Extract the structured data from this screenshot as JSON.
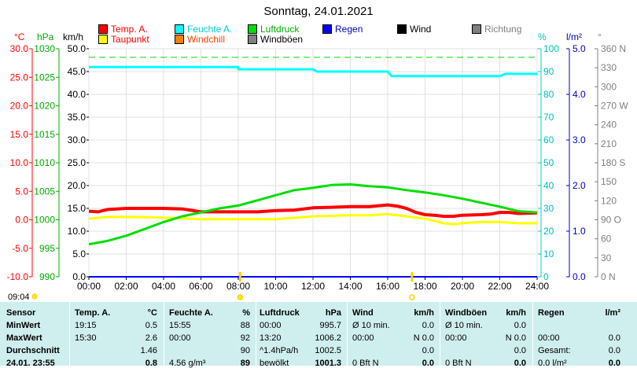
{
  "title": "Sonntag, 24.01.2021",
  "legend": [
    {
      "label": "Temp. A.",
      "color": "#ff0000",
      "col": 0,
      "row": 0
    },
    {
      "label": "Taupunkt",
      "color": "#ffff00",
      "col": 0,
      "row": 1
    },
    {
      "label": "Feuchte A.",
      "color": "#00ffff",
      "col": 1,
      "row": 0
    },
    {
      "label": "Windchill",
      "color": "#ff8000",
      "col": 1,
      "row": 1
    },
    {
      "label": "Luftdruck",
      "color": "#00dd00",
      "col": 2,
      "row": 0
    },
    {
      "label": "Windböen",
      "color": "#808080",
      "col": 2,
      "row": 1
    },
    {
      "label": "Regen",
      "color": "#0000ff",
      "col": 3,
      "row": 0
    },
    {
      "label": "Wind",
      "color": "#000000",
      "col": 4,
      "row": 0
    },
    {
      "label": "Richtung",
      "color": "#808080",
      "col": 5,
      "row": 0
    }
  ],
  "axis_units": {
    "temp": "°C",
    "pressure": "hPa",
    "wind": "km/h",
    "humidity": "%",
    "rain": "l/m²",
    "direction": "°"
  },
  "axis_ticks": {
    "temp": [
      "30.0",
      "25.0",
      "20.0",
      "15.0",
      "10.0",
      "5.0",
      "0.0",
      "-5.0",
      "-10.0"
    ],
    "pressure": [
      "1030",
      "1025",
      "1020",
      "1015",
      "1010",
      "1005",
      "1000",
      "995",
      "990"
    ],
    "wind": [
      "50.0",
      "45.0",
      "40.0",
      "35.0",
      "30.0",
      "25.0",
      "20.0",
      "15.0",
      "10.0",
      "5.0",
      "0.0"
    ],
    "humidity": [
      "100",
      "90",
      "80",
      "70",
      "60",
      "50",
      "40",
      "30",
      "20",
      "10",
      "0"
    ],
    "rain": [
      "5.0",
      "4.0",
      "3.0",
      "2.0",
      "1.0",
      "0.0"
    ],
    "direction": [
      "360 N",
      "330",
      "300",
      "270 W",
      "240",
      "210",
      "180 S",
      "150",
      "120",
      "90 O",
      "60",
      "30",
      "0   N"
    ],
    "time": [
      "00:00",
      "02:00",
      "04:00",
      "06:00",
      "08:00",
      "10:00",
      "12:00",
      "14:00",
      "16:00",
      "18:00",
      "20:00",
      "22:00",
      "24:00"
    ]
  },
  "current_time": "09:04",
  "chart_data": {
    "type": "line",
    "title": "Sonntag, 24.01.2021",
    "x_unit": "hours",
    "xlim": [
      0,
      24
    ],
    "series": [
      {
        "name": "Temp. A.",
        "unit": "°C",
        "axis": "temp",
        "ylim": [
          -10,
          30
        ],
        "color": "#ff0000",
        "x": [
          0,
          0.5,
          1,
          1.5,
          2,
          3,
          4,
          5,
          6,
          7,
          8,
          9,
          10,
          11,
          12,
          13,
          14,
          15,
          16,
          16.5,
          17,
          17.5,
          18,
          18.5,
          19,
          19.5,
          20,
          21,
          21.5,
          22,
          22.5,
          23,
          24
        ],
        "y": [
          1.5,
          1.4,
          1.8,
          1.9,
          2.0,
          2.0,
          2.0,
          1.9,
          1.4,
          1.4,
          1.4,
          1.4,
          1.6,
          1.7,
          2.1,
          2.2,
          2.3,
          2.3,
          2.6,
          2.4,
          2.0,
          1.3,
          0.9,
          0.8,
          0.6,
          0.6,
          0.8,
          0.9,
          1.0,
          1.3,
          1.3,
          1.1,
          1.2
        ]
      },
      {
        "name": "Taupunkt",
        "unit": "°C",
        "axis": "temp",
        "ylim": [
          -10,
          30
        ],
        "color": "#ffff00",
        "x": [
          0,
          1,
          2,
          4,
          6,
          8,
          10,
          12,
          14,
          15,
          16,
          17,
          18,
          19,
          19.5,
          20,
          21,
          22,
          23,
          24
        ],
        "y": [
          0.2,
          0.5,
          0.5,
          0.4,
          0.1,
          0.1,
          0.1,
          0.6,
          0.8,
          0.8,
          1.0,
          0.6,
          0.2,
          -0.6,
          -0.8,
          -0.6,
          -0.4,
          -0.4,
          -0.6,
          -0.6
        ]
      },
      {
        "name": "Feuchte A.",
        "unit": "%",
        "axis": "humidity",
        "ylim": [
          0,
          100
        ],
        "color": "#00ffff",
        "x": [
          0,
          8,
          8,
          12,
          12.2,
          16,
          16.2,
          22,
          22.3,
          24
        ],
        "y": [
          92,
          92,
          91,
          91,
          90,
          90,
          88,
          88,
          89,
          89
        ]
      },
      {
        "name": "Luftdruck",
        "unit": "hPa",
        "axis": "pressure",
        "ylim": [
          990,
          1030
        ],
        "color": "#00dd00",
        "x": [
          0,
          1,
          2,
          3,
          4,
          5,
          6,
          7,
          8,
          9,
          10,
          11,
          12,
          13,
          14,
          15,
          16,
          17,
          18,
          19,
          20,
          21,
          22,
          23,
          24
        ],
        "y": [
          995.7,
          996.3,
          997.2,
          998.4,
          999.6,
          1000.6,
          1001.3,
          1002.0,
          1002.5,
          1003.4,
          1004.3,
          1005.2,
          1005.6,
          1006.1,
          1006.2,
          1005.9,
          1005.7,
          1005.2,
          1004.8,
          1004.3,
          1003.7,
          1003.0,
          1002.3,
          1001.5,
          1001.3
        ]
      },
      {
        "name": "Wind",
        "unit": "km/h",
        "axis": "wind",
        "ylim": [
          0,
          50
        ],
        "color": "#000000",
        "x": [
          0,
          24
        ],
        "y": [
          0,
          0
        ]
      },
      {
        "name": "Regen",
        "unit": "l/m²",
        "axis": "rain",
        "ylim": [
          0,
          5
        ],
        "color": "#0000ff",
        "x": [
          0,
          24
        ],
        "y": [
          0,
          0
        ]
      }
    ],
    "reference_line": {
      "axis": "temp",
      "value": 28.5,
      "color": "#00dd00",
      "style": "dashed"
    },
    "sun_markers": [
      {
        "time": 8.1,
        "label": ""
      },
      {
        "time": 17.3,
        "label": "○"
      }
    ]
  },
  "summary": {
    "rows": [
      "Sensor",
      "MinWert",
      "MaxWert",
      "Durchschnitt",
      "24.01. 23:55"
    ],
    "temp": {
      "header": "Temp. A.",
      "unit": "°C",
      "rows": [
        [
          "19:15",
          "0.5"
        ],
        [
          "15:30",
          "2.6"
        ],
        [
          "",
          "1.46"
        ],
        [
          "",
          "0.8"
        ]
      ]
    },
    "humidity": {
      "header": "Feuchte A.",
      "unit": "%",
      "rows": [
        [
          "15:55",
          "88"
        ],
        [
          "00:00",
          "92"
        ],
        [
          "",
          "90"
        ],
        [
          "4.56 g/m³",
          "89"
        ]
      ]
    },
    "pressure": {
      "header": "Luftdruck",
      "unit": "hPa",
      "rows": [
        [
          "00:00",
          "995.7"
        ],
        [
          "13:20",
          "1006.2"
        ],
        [
          "^1.4hPa/h",
          "1002.5"
        ],
        [
          "bewölkt",
          "1001.3"
        ]
      ]
    },
    "wind": {
      "header": "Wind",
      "unit": "km/h",
      "rows": [
        [
          "Ø 10 min.",
          "0.0"
        ],
        [
          "00:00",
          "N 0.0"
        ],
        [
          "",
          "0.0"
        ],
        [
          "0 Bft N",
          "0.0"
        ]
      ]
    },
    "gust": {
      "header": "Windböen",
      "unit": "km/h",
      "rows": [
        [
          "Ø 10 min.",
          "0.0"
        ],
        [
          "00:00",
          "N 0.0"
        ],
        [
          "",
          "0.0"
        ],
        [
          "0 Bft N",
          "0.0"
        ]
      ]
    },
    "rain": {
      "header": "Regen",
      "unit": "l/m²",
      "rows": [
        [
          "",
          ""
        ],
        [
          "00:00",
          "0.0"
        ],
        [
          "Gesamt:",
          "0.0"
        ],
        [
          "0.0 l/m²",
          "0.0"
        ]
      ]
    }
  }
}
